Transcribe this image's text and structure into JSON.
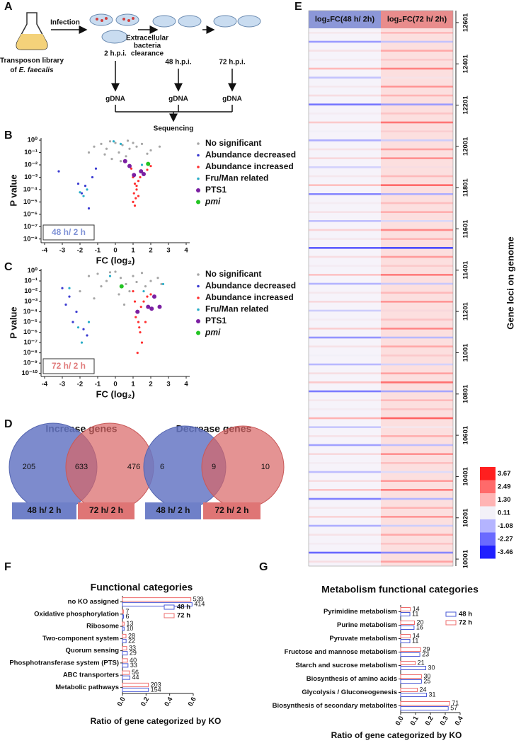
{
  "panel_labels": [
    "A",
    "B",
    "C",
    "D",
    "E",
    "F",
    "G"
  ],
  "workflow": {
    "library": "Transposon library",
    "library_of": "of",
    "species": "E. faecalis",
    "infection": "Infection",
    "timepoints": [
      "2 h.p.i.",
      "48 h.p.i.",
      "72 h.p.i."
    ],
    "clearance": [
      "Extracellular",
      "bacteria",
      "clearance"
    ],
    "gdna": [
      "gDNA",
      "gDNA",
      "gDNA"
    ],
    "sequencing": "Sequencing"
  },
  "venn": {
    "groups": [
      "48 h/ 2 h",
      "72 h/ 2 h"
    ],
    "diagrams": [
      {
        "title": "Increase genes",
        "only_first": 205,
        "both": 633,
        "only_second": 476
      },
      {
        "title": "Decrease genes",
        "only_first": 6,
        "both": 9,
        "only_second": 10
      }
    ]
  },
  "chart_data": [
    {
      "type": "scatter",
      "annotation": "48 h/ 2 h",
      "xlabel": "FC (log₂)",
      "ylabel": "P value",
      "log": true,
      "xlim": [
        -4.2,
        4.2
      ],
      "xticks": [
        -4,
        -3,
        -2,
        -1,
        0,
        1,
        2,
        3,
        4
      ],
      "ylim": [
        5e-09,
        1.5
      ],
      "yticks": [
        {
          "value": 1,
          "label": "10⁰"
        },
        {
          "value": 0.1,
          "label": "10⁻¹"
        },
        {
          "value": 0.01,
          "label": "10⁻²"
        },
        {
          "value": 0.001,
          "label": "10⁻³"
        },
        {
          "value": 0.0001,
          "label": "10⁻⁴"
        },
        {
          "value": 1e-05,
          "label": "10⁻⁵"
        },
        {
          "value": 1e-06,
          "label": "10⁻⁶"
        },
        {
          "value": 1e-07,
          "label": "10⁻⁷"
        },
        {
          "value": 1e-08,
          "label": "10⁻⁸"
        }
      ],
      "series": [
        {
          "name": "No significant",
          "color": "#a6a6a6",
          "x": [
            -1.2,
            -0.8,
            -0.5,
            -0.3,
            0,
            0.2,
            0.4,
            0.6,
            0.8,
            1.2,
            1.5,
            2.0,
            2.5,
            -1.5,
            -0.2,
            0.3,
            1.0,
            1.8,
            -0.6,
            0.7
          ],
          "values": [
            0.3,
            0.5,
            0.2,
            0.8,
            0.6,
            0.1,
            0.4,
            0.05,
            0.2,
            0.3,
            0.5,
            0.15,
            0.3,
            0.1,
            0.03,
            0.02,
            0.6,
            0.08,
            0.07,
            0.9
          ]
        },
        {
          "name": "Abundance decreased",
          "color": "#3b3bd1",
          "x": [
            -1.9,
            -1.7,
            -1.5,
            -1.3,
            -2.1,
            -1.1,
            -3.2
          ],
          "values": [
            5e-05,
            0.0002,
            3e-06,
            0.001,
            0.0003,
            0.005,
            0.003
          ]
        },
        {
          "name": "Abundance increased",
          "color": "#ff3030",
          "x": [
            0.9,
            1.0,
            1.1,
            1.2,
            1.3,
            1.4,
            1.5,
            1.0,
            1.1,
            1.2,
            1.6,
            1.8,
            2.0,
            1.3,
            1.05,
            1.15
          ],
          "values": [
            0.005,
            0.001,
            0.0003,
            0.0001,
            3e-05,
            0.001,
            0.003,
            1e-05,
            5e-06,
            0.0002,
            0.002,
            0.004,
            0.008,
            0.0005,
            5e-05,
            2e-05
          ]
        },
        {
          "name": "Fru/Man related",
          "color": "#2aaec8",
          "x": [
            -1.6,
            -1.8,
            -2.0,
            -0.1,
            0.3,
            0.6,
            1.5
          ],
          "values": [
            0.0001,
            3e-05,
            6e-05,
            0.8,
            0.5,
            0.02,
            0.01
          ]
        },
        {
          "name": "PTS1",
          "color": "#7b1fa2",
          "x": [
            0.55,
            0.8,
            1.05,
            1.45,
            1.6
          ],
          "values": [
            0.02,
            0.008,
            0.0015,
            0.003,
            0.0018
          ]
        },
        {
          "name": "pmi",
          "color": "#22c422",
          "x": [
            1.85
          ],
          "values": [
            0.012
          ]
        }
      ]
    },
    {
      "type": "scatter",
      "annotation": "72 h/ 2 h",
      "xlabel": "FC (log₂)",
      "ylabel": "P value",
      "log": true,
      "xlim": [
        -4.2,
        4.2
      ],
      "xticks": [
        -4,
        -3,
        -2,
        -1,
        0,
        1,
        2,
        3,
        4
      ],
      "ylim": [
        5e-11,
        1.5
      ],
      "yticks": [
        {
          "value": 1,
          "label": "10⁰"
        },
        {
          "value": 0.1,
          "label": "10⁻¹"
        },
        {
          "value": 0.01,
          "label": "10⁻²"
        },
        {
          "value": 0.001,
          "label": "10⁻³"
        },
        {
          "value": 0.0001,
          "label": "10⁻⁴"
        },
        {
          "value": 1e-05,
          "label": "10⁻⁵"
        },
        {
          "value": 1e-06,
          "label": "10⁻⁶"
        },
        {
          "value": 1e-07,
          "label": "10⁻⁷"
        },
        {
          "value": 1e-08,
          "label": "10⁻⁸"
        },
        {
          "value": 1e-09,
          "label": "10⁻⁹"
        },
        {
          "value": 1e-10,
          "label": "10⁻¹⁰"
        }
      ],
      "series": [
        {
          "name": "No significant",
          "color": "#a6a6a6",
          "x": [
            -1.5,
            -1,
            -0.5,
            0,
            0.3,
            0.6,
            1.0,
            1.5,
            2.0,
            2.4,
            -2.0,
            -0.8,
            0.2,
            0.8,
            1.2,
            -1.2,
            0.5,
            1.7,
            2.6,
            -0.3
          ],
          "values": [
            0.3,
            0.5,
            0.1,
            0.8,
            0.2,
            0.05,
            0.3,
            0.6,
            0.1,
            0.2,
            0.01,
            0.03,
            0.005,
            0.01,
            0.08,
            0.002,
            0.0005,
            0.03,
            0.05,
            0.7
          ]
        },
        {
          "name": "Abundance decreased",
          "color": "#3b3bd1",
          "x": [
            -3.0,
            -2.6,
            -2.2,
            -1.8,
            -2.4,
            -1.6,
            -2.8
          ],
          "values": [
            0.02,
            0.003,
            0.0001,
            2e-06,
            1e-05,
            5e-07,
            0.0005
          ]
        },
        {
          "name": "Abundance increased",
          "color": "#ff3030",
          "x": [
            1.0,
            1.1,
            1.2,
            1.3,
            1.4,
            1.5,
            1.6,
            1.8,
            2.0,
            1.25,
            1.35,
            1.15,
            1.45,
            1.7
          ],
          "values": [
            0.01,
            0.001,
            0.0001,
            1e-05,
            1e-06,
            1e-07,
            0.001,
            0.003,
            0.005,
            1e-08,
            3e-06,
            3e-05,
            0.0003,
            1e-05
          ]
        },
        {
          "name": "Fru/Man related",
          "color": "#2aaec8",
          "x": [
            -1.9,
            -1.5,
            -2.1,
            -0.3,
            1.6,
            2.7,
            -2.6
          ],
          "values": [
            1e-07,
            1e-05,
            3e-06,
            0.3,
            0.01,
            0.05,
            0.02
          ]
        },
        {
          "name": "PTS1",
          "color": "#7b1fa2",
          "x": [
            1.25,
            1.85,
            2.05,
            2.2,
            2.5
          ],
          "values": [
            0.0001,
            0.0003,
            0.0002,
            0.003,
            0.0003
          ]
        },
        {
          "name": "pmi",
          "color": "#22c422",
          "x": [
            0.35
          ],
          "values": [
            0.03
          ]
        }
      ]
    },
    {
      "type": "heatmap",
      "columns": [
        "log₂FC(48 h/ 2h)",
        "log₂FC(72 h/ 2h)"
      ],
      "ylabel": "Gene loci on genome",
      "ylim": [
        9967,
        12659
      ],
      "yticks": [
        10001,
        10201,
        10401,
        10601,
        10801,
        11001,
        11201,
        11401,
        11601,
        11801,
        12001,
        12201,
        12401,
        12601
      ],
      "colorscale": [
        {
          "value": 3.67,
          "color": "#ff1f1f"
        },
        {
          "value": 2.49,
          "color": "#ff6a6a"
        },
        {
          "value": 1.3,
          "label": "1.30",
          "color": "#ffb4b4"
        },
        {
          "value": 0.11,
          "color": "#f3f1f8"
        },
        {
          "value": -1.08,
          "color": "#b4b4ff"
        },
        {
          "value": -2.27,
          "color": "#6a6aff"
        },
        {
          "value": -3.46,
          "color": "#1f1fff"
        }
      ],
      "values": [
        [
          0.3,
          -1.5,
          0.4,
          0.2,
          1.2,
          -0.8,
          0.3,
          0.5,
          -2.1,
          0.2,
          0.9,
          0.1,
          -1.2,
          0.4,
          0.6,
          -0.5,
          0.3,
          1.1,
          -1.8,
          0.2,
          0.4,
          -0.9,
          0.7,
          0.3,
          -2.5,
          0.5,
          0.2,
          1.0,
          -1.1,
          0.3,
          0.6,
          -0.6,
          0.2,
          0.8,
          -1.6,
          0.4,
          0.1,
          -1.0,
          0.5,
          0.9,
          -2.0,
          0.3,
          0.2,
          1.3,
          -0.7,
          0.4,
          -1.4,
          0.6,
          0.2,
          -0.9,
          0.5,
          1.0,
          -1.9,
          0.3,
          0.7,
          -1.2,
          0.4,
          0.2,
          -2.3,
          0.5
        ],
        [
          1.2,
          -0.8,
          1.5,
          0.9,
          2.1,
          0.4,
          1.8,
          1.3,
          -1.5,
          1.0,
          2.3,
          0.8,
          -0.6,
          1.6,
          1.9,
          0.5,
          1.2,
          2.5,
          -1.2,
          1.1,
          1.4,
          -0.4,
          2.0,
          1.3,
          -2.8,
          1.7,
          0.9,
          2.2,
          -0.7,
          1.2,
          1.8,
          0.6,
          1.0,
          2.0,
          -1.0,
          1.5,
          0.9,
          -0.5,
          1.6,
          2.4,
          -1.3,
          1.2,
          1.0,
          2.6,
          0.3,
          1.4,
          -0.9,
          1.9,
          1.1,
          -0.3,
          1.7,
          2.2,
          -1.1,
          1.3,
          1.8,
          -0.6,
          1.5,
          1.0,
          -1.8,
          1.6
        ]
      ]
    },
    {
      "type": "bar",
      "orientation": "horizontal",
      "title": "Functional categories",
      "xlabel": "Ratio of gene categorized by KO",
      "categories": [
        "no KO assigned",
        "Oxidative phosphorylation",
        "Ribosome",
        "Two-component system",
        "Quorum sensing",
        "Phosphotransferase system (PTS)",
        "ABC transporters",
        "Metabolic pathways"
      ],
      "xlim": [
        0,
        0.6
      ],
      "xticks": [
        {
          "value": 0,
          "label": "0.0"
        },
        0.2,
        0.4,
        0.6
      ],
      "series": [
        {
          "name": "48 h",
          "color": "#4a5ad6",
          "values": [
            0.59,
            0.009,
            0.014,
            0.031,
            0.041,
            0.047,
            0.063,
            0.22
          ],
          "counts": [
            414,
            6,
            10,
            22,
            29,
            33,
            44,
            154
          ]
        },
        {
          "name": "72 h",
          "color": "#ee6c6c",
          "values": [
            0.58,
            0.008,
            0.014,
            0.03,
            0.036,
            0.043,
            0.06,
            0.22
          ],
          "counts": [
            539,
            7,
            13,
            28,
            33,
            40,
            56,
            203
          ]
        }
      ]
    },
    {
      "type": "bar",
      "orientation": "horizontal",
      "title": "Metabolism functional categories",
      "xlabel": "Ratio of gene categorized by KO",
      "categories": [
        "Pyrimidine metabolism",
        "Purine metabolism",
        "Pyruvate metabolism",
        "Fructose and mannose metabolism",
        "Starch and sucrose metabolism",
        "Biosynthesis of amino acids",
        "Glycolysis / Gluconeogenesis",
        "Biosynthesis of secondary metabolites"
      ],
      "xlim": [
        0,
        0.4
      ],
      "xticks": [
        {
          "value": 0,
          "label": "0.0"
        },
        0.1,
        0.2,
        0.3,
        0.4
      ],
      "series": [
        {
          "name": "48 h",
          "color": "#4a5ad6",
          "values": [
            0.062,
            0.09,
            0.062,
            0.129,
            0.169,
            0.14,
            0.174,
            0.32
          ],
          "counts": [
            11,
            16,
            11,
            23,
            30,
            25,
            31,
            57
          ]
        },
        {
          "name": "72 h",
          "color": "#ee6c6c",
          "values": [
            0.065,
            0.093,
            0.065,
            0.135,
            0.098,
            0.14,
            0.112,
            0.33
          ],
          "counts": [
            14,
            20,
            14,
            29,
            21,
            30,
            24,
            71
          ]
        }
      ]
    }
  ]
}
